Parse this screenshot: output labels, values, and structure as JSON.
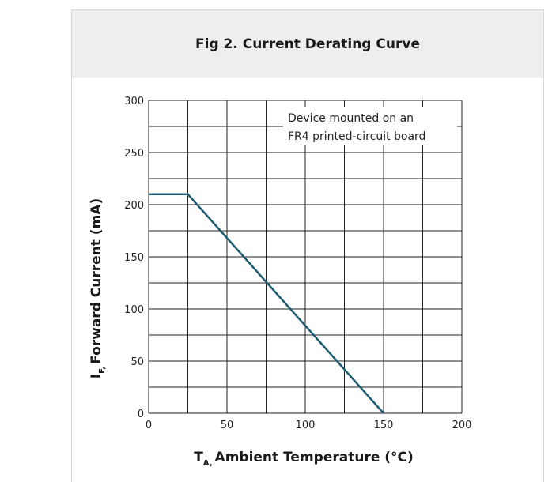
{
  "chart_data": {
    "type": "line",
    "title": "Fig 2. Current Derating Curve",
    "xlabel": {
      "main": "T",
      "sub": "A,",
      "rest": "Ambient Temperature (°C)"
    },
    "ylabel": {
      "main": "I",
      "sub": "F,",
      "rest": "Forward Current (mA)"
    },
    "xlim": [
      0,
      200
    ],
    "ylim": [
      0,
      300
    ],
    "x_ticks": [
      0,
      50,
      100,
      150,
      200
    ],
    "y_ticks": [
      0,
      50,
      100,
      150,
      200,
      250,
      300
    ],
    "x_minor_step": 25,
    "y_minor_step": 25,
    "grid": true,
    "line_color": "#1d5c73",
    "series": [
      {
        "x": [
          0,
          25,
          150
        ],
        "y": [
          210,
          210,
          0
        ]
      }
    ],
    "annotation": {
      "line1": "Device mounted on an",
      "line2": "FR4 printed-circuit board"
    }
  }
}
